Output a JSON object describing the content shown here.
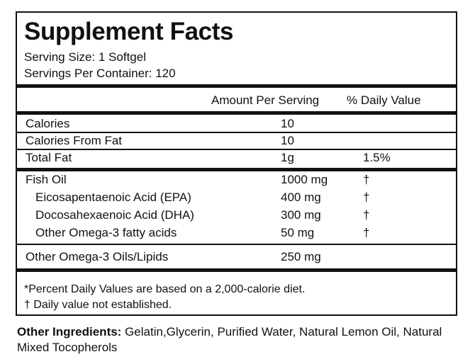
{
  "title": "Supplement Facts",
  "serving_size": "Serving Size: 1 Softgel",
  "servings_per_container": "Servings Per Container: 120",
  "header": {
    "amount": "Amount Per Serving",
    "dv": "% Daily Value"
  },
  "rows": [
    {
      "name": "Calories",
      "amount": "10",
      "dv": ""
    },
    {
      "name": "Calories From Fat",
      "amount": "10",
      "dv": ""
    },
    {
      "name": "Total Fat",
      "amount": "1g",
      "dv": "1.5%"
    },
    {
      "name": "Fish Oil",
      "amount": "1000 mg",
      "dv": "†"
    },
    {
      "name": "Eicosapentaenoic Acid (EPA)",
      "amount": "400 mg",
      "dv": "†"
    },
    {
      "name": "Docosahexaenoic Acid (DHA)",
      "amount": "300 mg",
      "dv": "†"
    },
    {
      "name": "Other Omega-3 fatty acids",
      "amount": "50 mg",
      "dv": "†"
    },
    {
      "name": "Other Omega-3 Oils/Lipids",
      "amount": "250 mg",
      "dv": ""
    }
  ],
  "footnotes": [
    "*Percent Daily Values are based on a 2,000-calorie diet.",
    "† Daily value not established."
  ],
  "other_ingredients": {
    "label": "Other Ingredients:",
    "text": " Gelatin,Glycerin, Purified Water, Natural Lemon Oil, Natural Mixed Tocopherols"
  }
}
